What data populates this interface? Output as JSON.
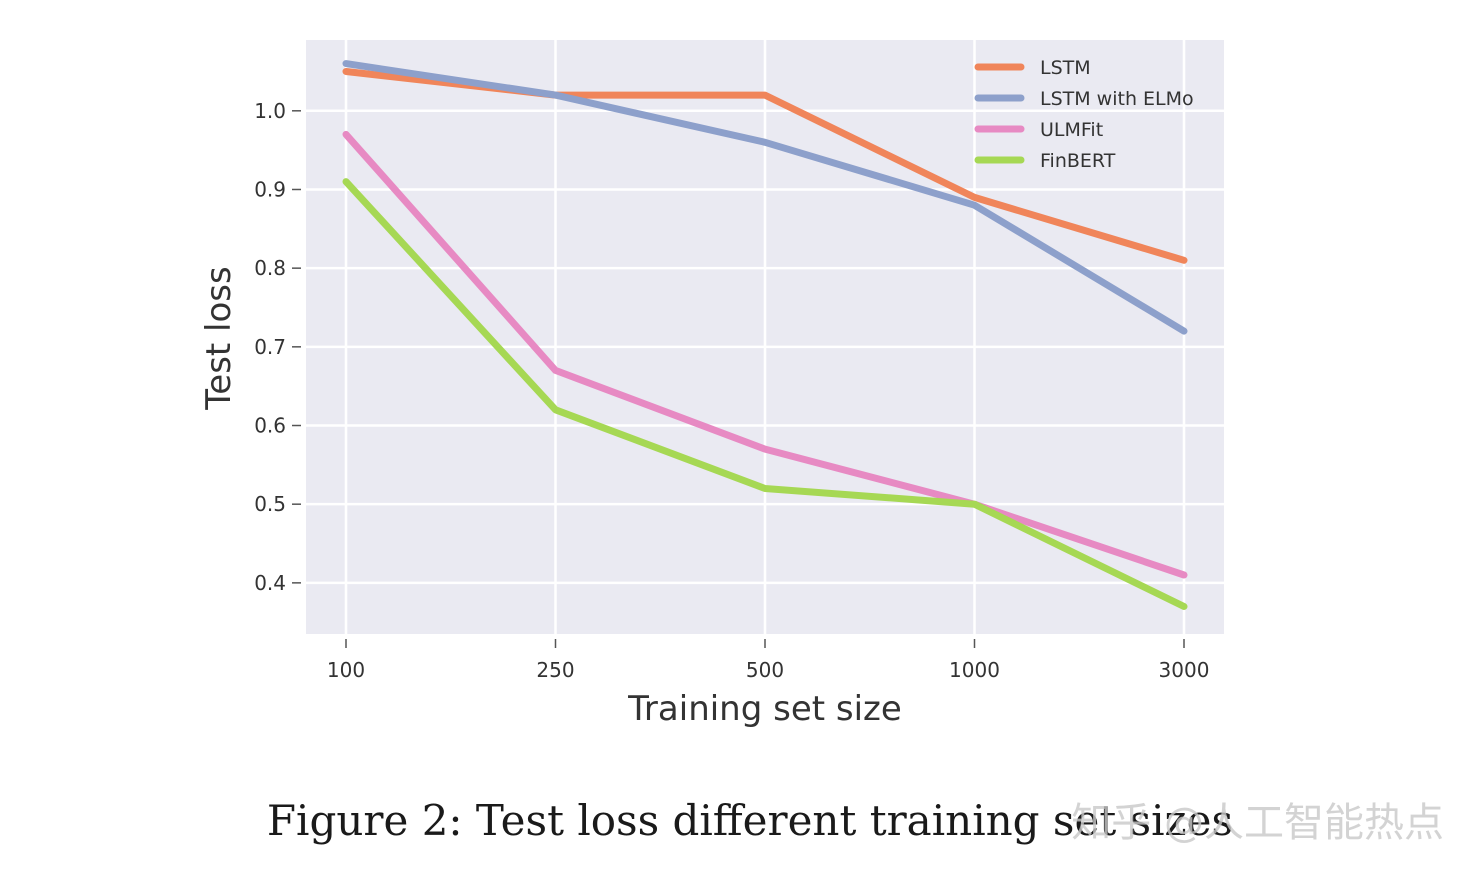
{
  "chart_data": {
    "type": "line",
    "title": "",
    "xlabel": "Training set size",
    "ylabel": "Test loss",
    "categories": [
      "100",
      "250",
      "500",
      "1000",
      "3000"
    ],
    "ylim": [
      0.335,
      1.09
    ],
    "yticks": [
      0.4,
      0.5,
      0.6,
      0.7,
      0.8,
      0.9,
      1.0
    ],
    "ytick_labels": [
      "0.4",
      "0.5",
      "0.6",
      "0.7",
      "0.8",
      "0.9",
      "1.0"
    ],
    "grid": true,
    "legend_position": "top-right",
    "series": [
      {
        "name": "LSTM",
        "color": "#f0855a",
        "values": [
          1.05,
          1.02,
          1.02,
          0.89,
          0.81
        ]
      },
      {
        "name": "LSTM with ELMo",
        "color": "#8da0cb",
        "values": [
          1.06,
          1.02,
          0.96,
          0.88,
          0.72
        ]
      },
      {
        "name": "ULMFit",
        "color": "#e78ac3",
        "values": [
          0.97,
          0.67,
          0.57,
          0.5,
          0.41
        ]
      },
      {
        "name": "FinBERT",
        "color": "#a6d854",
        "values": [
          0.91,
          0.62,
          0.52,
          0.5,
          0.37
        ]
      }
    ]
  },
  "caption": "Figure 2: Test loss different training set sizes",
  "watermark": "知乎 @人工智能热点"
}
